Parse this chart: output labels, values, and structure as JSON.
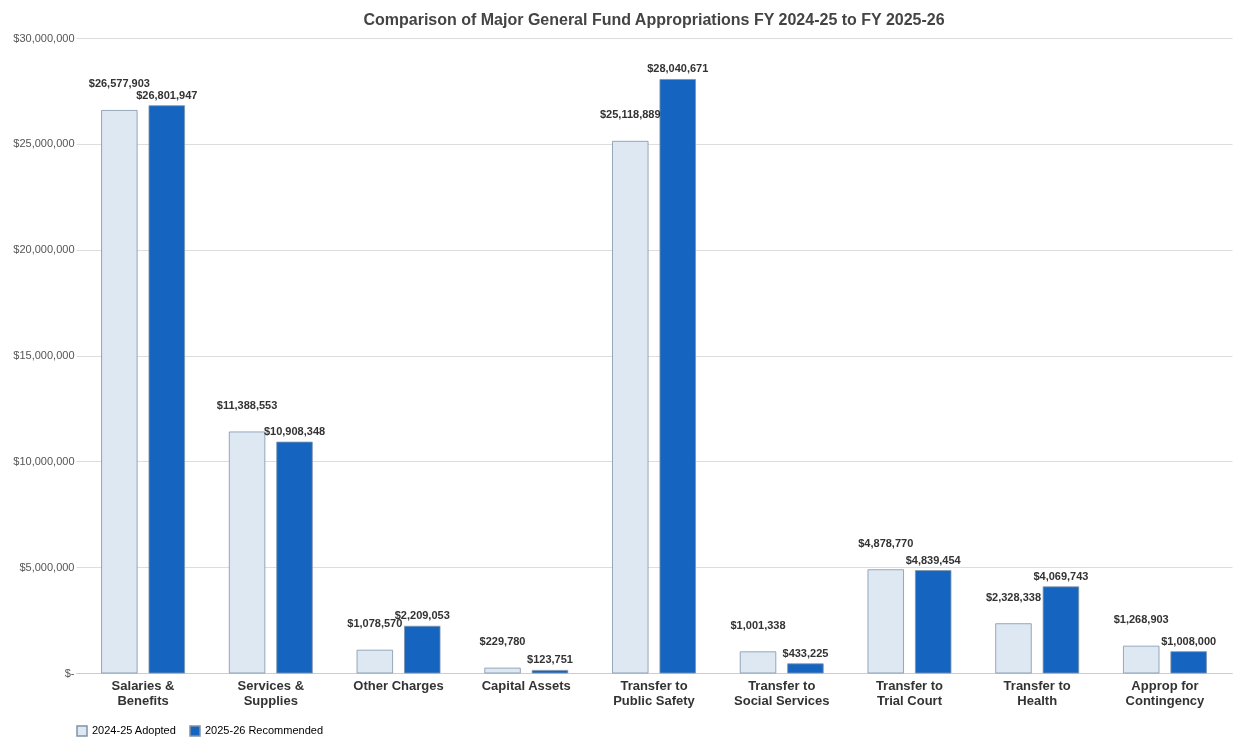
{
  "chart_data": {
    "type": "bar",
    "title": "Comparison of Major General Fund Appropriations FY 2024-25 to FY 2025-26",
    "categories": [
      "Salaries & Benefits",
      "Services & Supplies",
      "Other Charges",
      "Capital Assets",
      "Transfer to Public Safety",
      "Transfer to Social Services",
      "Transfer to Trial Court",
      "Transfer to Health",
      "Approp for Contingency"
    ],
    "series": [
      {
        "name": "2024-25 Adopted",
        "color": "#dde8f3",
        "values": [
          26577903,
          11388553,
          1078570,
          229780,
          25118889,
          1001338,
          4878770,
          2328338,
          1268903
        ],
        "value_labels": [
          "$26,577,903",
          "$11,388,553",
          "$1,078,570",
          "$229,780",
          "$25,118,889",
          "$1,001,338",
          "$4,878,770",
          "$2,328,338",
          "$1,268,903"
        ]
      },
      {
        "name": "2025-26 Recommended",
        "color": "#1565c0",
        "values": [
          26801947,
          10908348,
          2209053,
          123751,
          28040671,
          433225,
          4839454,
          4069743,
          1008000
        ],
        "value_labels": [
          "$26,801,947",
          "$10,908,348",
          "$2,209,053",
          "$123,751",
          "$28,040,671",
          "$433,225",
          "$4,839,454",
          "$4,069,743",
          "$1,008,000"
        ]
      }
    ],
    "ylim": [
      0,
      30000000
    ],
    "yticks": [
      {
        "value": 0,
        "label": "$-"
      },
      {
        "value": 5000000,
        "label": "$5,000,000"
      },
      {
        "value": 10000000,
        "label": "$10,000,000"
      },
      {
        "value": 15000000,
        "label": "$15,000,000"
      },
      {
        "value": 20000000,
        "label": "$20,000,000"
      },
      {
        "value": 25000000,
        "label": "$25,000,000"
      },
      {
        "value": 30000000,
        "label": "$30,000,000"
      }
    ],
    "grid": "y",
    "legend": "bottom"
  }
}
